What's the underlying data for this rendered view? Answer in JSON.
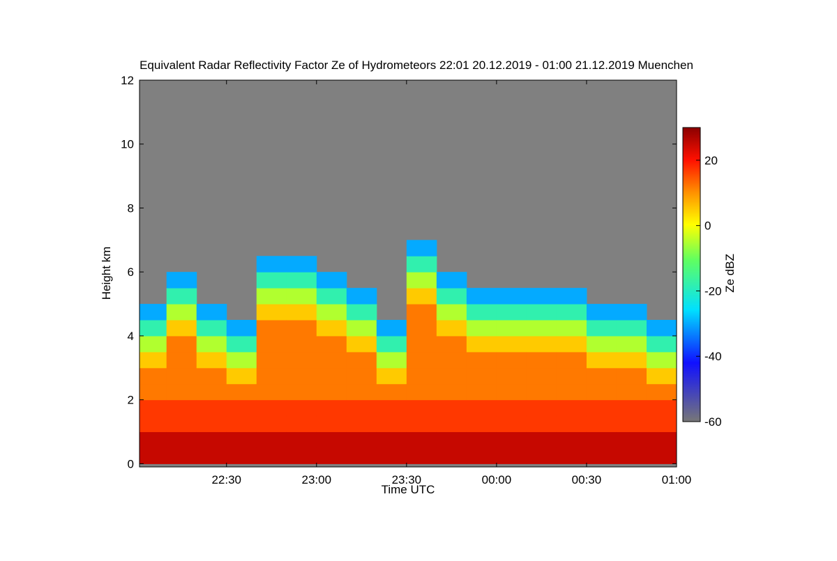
{
  "chart_data": {
    "type": "heatmap",
    "title": "Equivalent Radar Reflectivity Factor Ze of Hydrometeors   22:01 20.12.2019 - 01:00 21.12.2019 Muenchen",
    "x_label": "Time UTC",
    "y_label": "Height km",
    "colorbar_label": "Ze dBZ",
    "x": [
      5,
      15,
      25,
      35,
      45,
      55,
      65,
      75,
      85,
      95,
      105,
      115,
      125,
      135,
      145,
      155,
      165,
      175
    ],
    "y": [
      0.25,
      0.75,
      1.25,
      1.75,
      2.25,
      2.75,
      3.25,
      3.75,
      4.25,
      4.75,
      5.25,
      5.75,
      6.25,
      6.75
    ],
    "z": [
      [
        25,
        25,
        17,
        17,
        12,
        12,
        5,
        -5,
        -18,
        -30,
        null,
        null,
        null,
        null
      ],
      [
        25,
        25,
        17,
        17,
        12,
        12,
        12,
        12,
        5,
        -5,
        -18,
        -30,
        null,
        null
      ],
      [
        25,
        25,
        17,
        17,
        12,
        12,
        5,
        -5,
        -18,
        -30,
        null,
        null,
        null,
        null
      ],
      [
        25,
        25,
        17,
        17,
        12,
        5,
        -5,
        -18,
        -30,
        null,
        null,
        null,
        null,
        null
      ],
      [
        25,
        25,
        17,
        17,
        12,
        12,
        12,
        12,
        12,
        5,
        -5,
        -18,
        -30,
        null
      ],
      [
        25,
        25,
        17,
        17,
        12,
        12,
        12,
        12,
        12,
        5,
        -5,
        -18,
        -30,
        null
      ],
      [
        25,
        25,
        17,
        17,
        12,
        12,
        12,
        12,
        5,
        -5,
        -18,
        -30,
        null,
        null
      ],
      [
        25,
        25,
        17,
        17,
        12,
        12,
        12,
        5,
        -5,
        -18,
        -30,
        null,
        null,
        null
      ],
      [
        25,
        25,
        17,
        17,
        12,
        5,
        -5,
        -18,
        -30,
        null,
        null,
        null,
        null,
        null
      ],
      [
        25,
        25,
        17,
        17,
        12,
        12,
        12,
        12,
        12,
        12,
        5,
        -5,
        -18,
        -30
      ],
      [
        25,
        25,
        17,
        17,
        12,
        12,
        12,
        12,
        5,
        -5,
        -18,
        -30,
        null,
        null
      ],
      [
        25,
        25,
        17,
        17,
        12,
        12,
        12,
        5,
        -5,
        -18,
        -30,
        null,
        null,
        null
      ],
      [
        25,
        25,
        17,
        17,
        12,
        12,
        12,
        5,
        -5,
        -18,
        -30,
        null,
        null,
        null
      ],
      [
        25,
        25,
        17,
        17,
        12,
        12,
        12,
        5,
        -5,
        -18,
        -30,
        null,
        null,
        null
      ],
      [
        25,
        25,
        17,
        17,
        12,
        12,
        12,
        5,
        -5,
        -18,
        -30,
        null,
        null,
        null
      ],
      [
        25,
        25,
        17,
        17,
        12,
        12,
        5,
        -5,
        -18,
        -30,
        null,
        null,
        null,
        null
      ],
      [
        25,
        25,
        17,
        17,
        12,
        12,
        5,
        -5,
        -18,
        -30,
        null,
        null,
        null,
        null
      ],
      [
        25,
        25,
        17,
        17,
        12,
        5,
        -5,
        -18,
        -30,
        null,
        null,
        null,
        null,
        null
      ]
    ],
    "xlim": [
      1,
      180
    ],
    "xticks": [
      {
        "value": 30,
        "label": "22:30"
      },
      {
        "value": 60,
        "label": "23:00"
      },
      {
        "value": 90,
        "label": "23:30"
      },
      {
        "value": 120,
        "label": "00:00"
      },
      {
        "value": 150,
        "label": "00:30"
      },
      {
        "value": 180,
        "label": "01:00"
      }
    ],
    "ylim": [
      -0.1,
      12
    ],
    "yticks": [
      0,
      2,
      4,
      6,
      8,
      10,
      12
    ],
    "clim": [
      -60,
      30
    ],
    "cticks": [
      -60,
      -40,
      -20,
      0,
      20
    ],
    "background_color": "#808080"
  }
}
